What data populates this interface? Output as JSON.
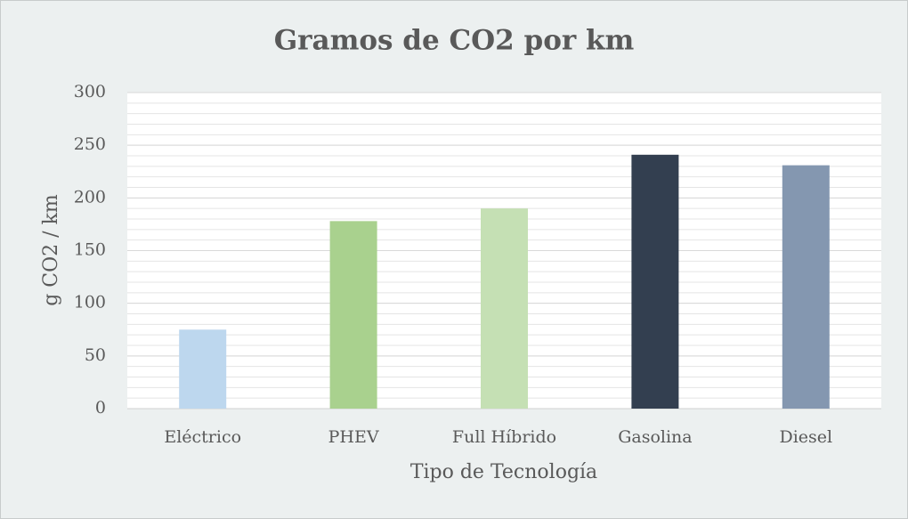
{
  "chart_data": {
    "type": "bar",
    "title": "Gramos de CO2 por km",
    "x_label": "Tipo de Tecnología",
    "y_label": "g CO2 / km",
    "categories": [
      "Eléctrico",
      "PHEV",
      "Full Híbrido",
      "Gasolina",
      "Diesel"
    ],
    "values": [
      75,
      178,
      190,
      241,
      231
    ],
    "colors": [
      "#bdd7ee",
      "#a9d18e",
      "#c5e0b4",
      "#333f50",
      "#8497b0"
    ],
    "ylim": [
      0,
      300
    ],
    "yticks": [
      0,
      50,
      100,
      150,
      200,
      250,
      300
    ],
    "grid": true,
    "minor_grid_step": 10
  }
}
